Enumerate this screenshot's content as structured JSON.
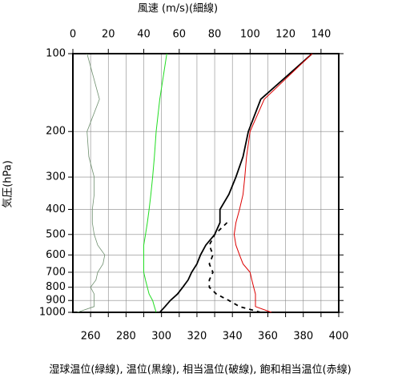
{
  "chart_data": {
    "type": "line",
    "x2_title": "風速 (m/s)(細線)",
    "y_title": "気圧(hPa)",
    "x_title": "湿球温位(緑線), 温位(黒線), 相当温位(破線), 飽和相当温位(赤線)",
    "y": [
      1000,
      950,
      900,
      850,
      800,
      750,
      700,
      650,
      600,
      550,
      500,
      450,
      400,
      350,
      300,
      250,
      200,
      150,
      100
    ],
    "series": [
      {
        "name": "風速",
        "color": "#6f8f6f",
        "axis": "x2",
        "dash": false,
        "width": 0.8,
        "values": [
          2.5,
          12,
          12,
          12,
          10,
          13,
          14,
          17,
          18,
          14,
          12,
          11,
          11,
          12,
          12,
          9,
          8,
          15,
          8
        ]
      },
      {
        "name": "湿球温位",
        "color": "#22dd22",
        "dash": false,
        "width": 1,
        "values": [
          297,
          296,
          295,
          293,
          292,
          291,
          290,
          290,
          290,
          290,
          291,
          292,
          293,
          294,
          295,
          296,
          297,
          299,
          303
        ]
      },
      {
        "name": "温位",
        "color": "#000000",
        "dash": false,
        "width": 1.8,
        "values": [
          299,
          302,
          305,
          309,
          312,
          315,
          317,
          320,
          322,
          325,
          330,
          333,
          333,
          338,
          342,
          346,
          349,
          356,
          385
        ]
      },
      {
        "name": "相当温位",
        "color": "#000000",
        "dash": true,
        "width": 1.8,
        "values": [
          356,
          344,
          338,
          331,
          327,
          327,
          329,
          327,
          329,
          327,
          330,
          337,
          null,
          null,
          null,
          null,
          null,
          null,
          null
        ]
      },
      {
        "name": "飽和相当温位",
        "color": "#dd0000",
        "dash": false,
        "width": 1,
        "values": [
          362,
          353,
          353,
          353,
          352,
          351,
          350,
          346,
          344,
          342,
          341,
          342,
          344,
          346,
          347,
          348,
          350,
          358,
          385
        ]
      }
    ],
    "xlim": [
      250,
      400
    ],
    "xticks": [
      260,
      280,
      300,
      320,
      340,
      360,
      380,
      400
    ],
    "xminorticks": [
      270,
      290,
      310,
      330,
      350,
      370,
      390
    ],
    "x2lim": [
      0,
      150
    ],
    "x2ticks": [
      0,
      20,
      40,
      60,
      80,
      100,
      120,
      140
    ],
    "ylim": [
      1000,
      100
    ],
    "yticks": [
      100,
      200,
      300,
      400,
      500,
      600,
      700,
      800,
      900,
      1000
    ],
    "ylog": true,
    "grid": true
  }
}
